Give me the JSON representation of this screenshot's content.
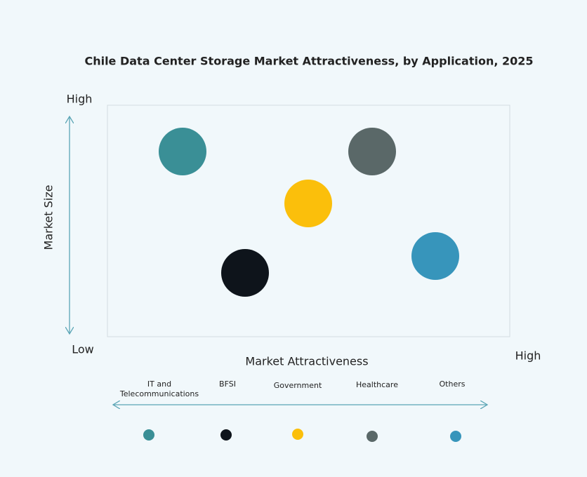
{
  "title": "Chile Data Center Storage Market Attractiveness,  by Application, 2025",
  "y_axis": {
    "label": "Market Size",
    "high": "High",
    "low": "Low"
  },
  "x_axis": {
    "label": "Market Attractiveness",
    "high": "High"
  },
  "items": [
    {
      "label": "IT and Telecommunications",
      "color": "#3a8f96"
    },
    {
      "label": "BFSI",
      "color": "#0e141b"
    },
    {
      "label": "Government",
      "color": "#fbbf0b"
    },
    {
      "label": "Healthcare",
      "color": "#5a6868"
    },
    {
      "label": "Others",
      "color": "#3795bb"
    }
  ]
}
